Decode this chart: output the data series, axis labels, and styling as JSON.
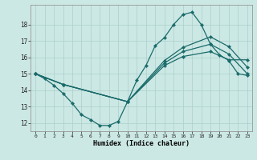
{
  "xlabel": "Humidex (Indice chaleur)",
  "bg_color": "#cce8e4",
  "grid_color": "#aacfcb",
  "line_color": "#1a6b6b",
  "xlim": [
    -0.5,
    23.5
  ],
  "ylim": [
    11.5,
    19.2
  ],
  "xticks": [
    0,
    1,
    2,
    3,
    4,
    5,
    6,
    7,
    8,
    9,
    10,
    11,
    12,
    13,
    14,
    15,
    16,
    17,
    18,
    19,
    20,
    21,
    22,
    23
  ],
  "yticks": [
    12,
    13,
    14,
    15,
    16,
    17,
    18
  ],
  "series1_x": [
    0,
    1,
    2,
    3,
    4,
    5,
    6,
    7,
    8,
    9,
    10,
    11,
    12,
    13,
    14,
    15,
    16,
    17,
    18,
    19,
    20,
    21,
    22,
    23
  ],
  "series1_y": [
    15.0,
    14.7,
    14.3,
    13.8,
    13.2,
    12.5,
    12.2,
    11.85,
    11.85,
    12.1,
    13.3,
    14.6,
    15.5,
    16.7,
    17.2,
    18.0,
    18.6,
    18.75,
    18.0,
    16.8,
    16.15,
    15.8,
    15.0,
    14.9
  ],
  "series2_x": [
    0,
    3,
    10,
    14,
    16,
    19,
    21,
    23
  ],
  "series2_y": [
    15.0,
    14.35,
    13.3,
    15.5,
    16.05,
    16.35,
    15.85,
    15.85
  ],
  "series3_x": [
    0,
    3,
    10,
    14,
    16,
    19,
    21,
    23
  ],
  "series3_y": [
    15.0,
    14.35,
    13.3,
    15.65,
    16.35,
    16.8,
    16.2,
    15.0
  ],
  "series4_x": [
    0,
    3,
    10,
    14,
    16,
    19,
    21,
    23
  ],
  "series4_y": [
    15.0,
    14.35,
    13.3,
    15.8,
    16.6,
    17.25,
    16.65,
    15.4
  ]
}
